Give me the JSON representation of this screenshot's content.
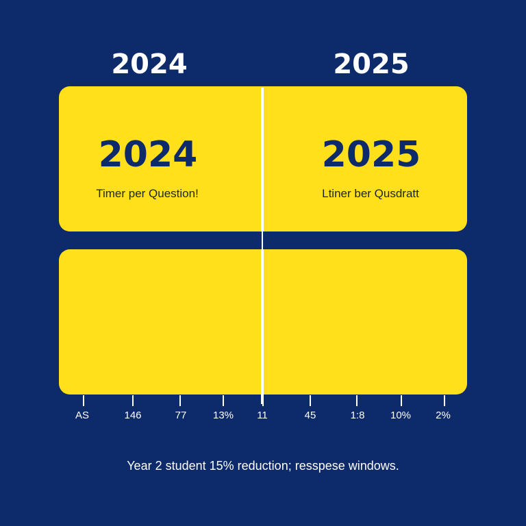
{
  "colors": {
    "background": "#0d2a6b",
    "panel": "#ffe01a",
    "panel_text": "#0d2a6b",
    "divider": "#ffffff"
  },
  "headers": {
    "left_year": "2024",
    "right_year": "2025"
  },
  "top_panel": {
    "left_year": "2024",
    "left_caption": "Timer per Question!",
    "right_year": "2025",
    "right_caption": "Ltiner ber Qusdratt"
  },
  "scale": {
    "labels": [
      "AS",
      "146",
      "77",
      "13%",
      "11",
      "45",
      "1:8",
      "10%",
      "2%"
    ]
  },
  "footer": {
    "text": "Year 2 student 15% reduction; resspese windows."
  }
}
